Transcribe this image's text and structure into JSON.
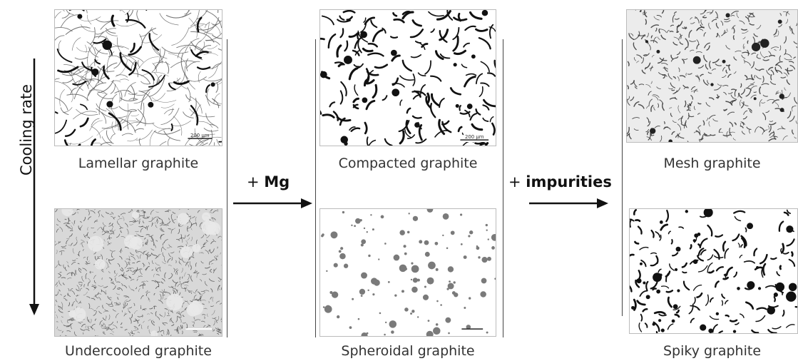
{
  "axis": {
    "label": "Cooling rate",
    "arrow_icon": "arrow-down-icon"
  },
  "operations": [
    {
      "prefix": "+ ",
      "reagent": "Mg",
      "arrow_icon": "arrow-right-icon"
    },
    {
      "prefix": "+ ",
      "reagent": "impurities",
      "arrow_icon": "arrow-right-icon"
    }
  ],
  "panels": [
    {
      "id": "lamellar",
      "caption": "Lamellar graphite",
      "scale": "200 µm"
    },
    {
      "id": "undercooled",
      "caption": "Undercooled graphite",
      "scale": ""
    },
    {
      "id": "compacted",
      "caption": "Compacted graphite",
      "scale": "200 µm"
    },
    {
      "id": "spheroidal",
      "caption": "Spheroidal graphite",
      "scale": ""
    },
    {
      "id": "mesh",
      "caption": "Mesh graphite",
      "scale": ""
    },
    {
      "id": "spiky",
      "caption": "Spiky graphite",
      "scale": ""
    }
  ],
  "colors": {
    "graphite": "#111111",
    "spheroid": "#7a7a7a",
    "background_light": "#ececec"
  }
}
